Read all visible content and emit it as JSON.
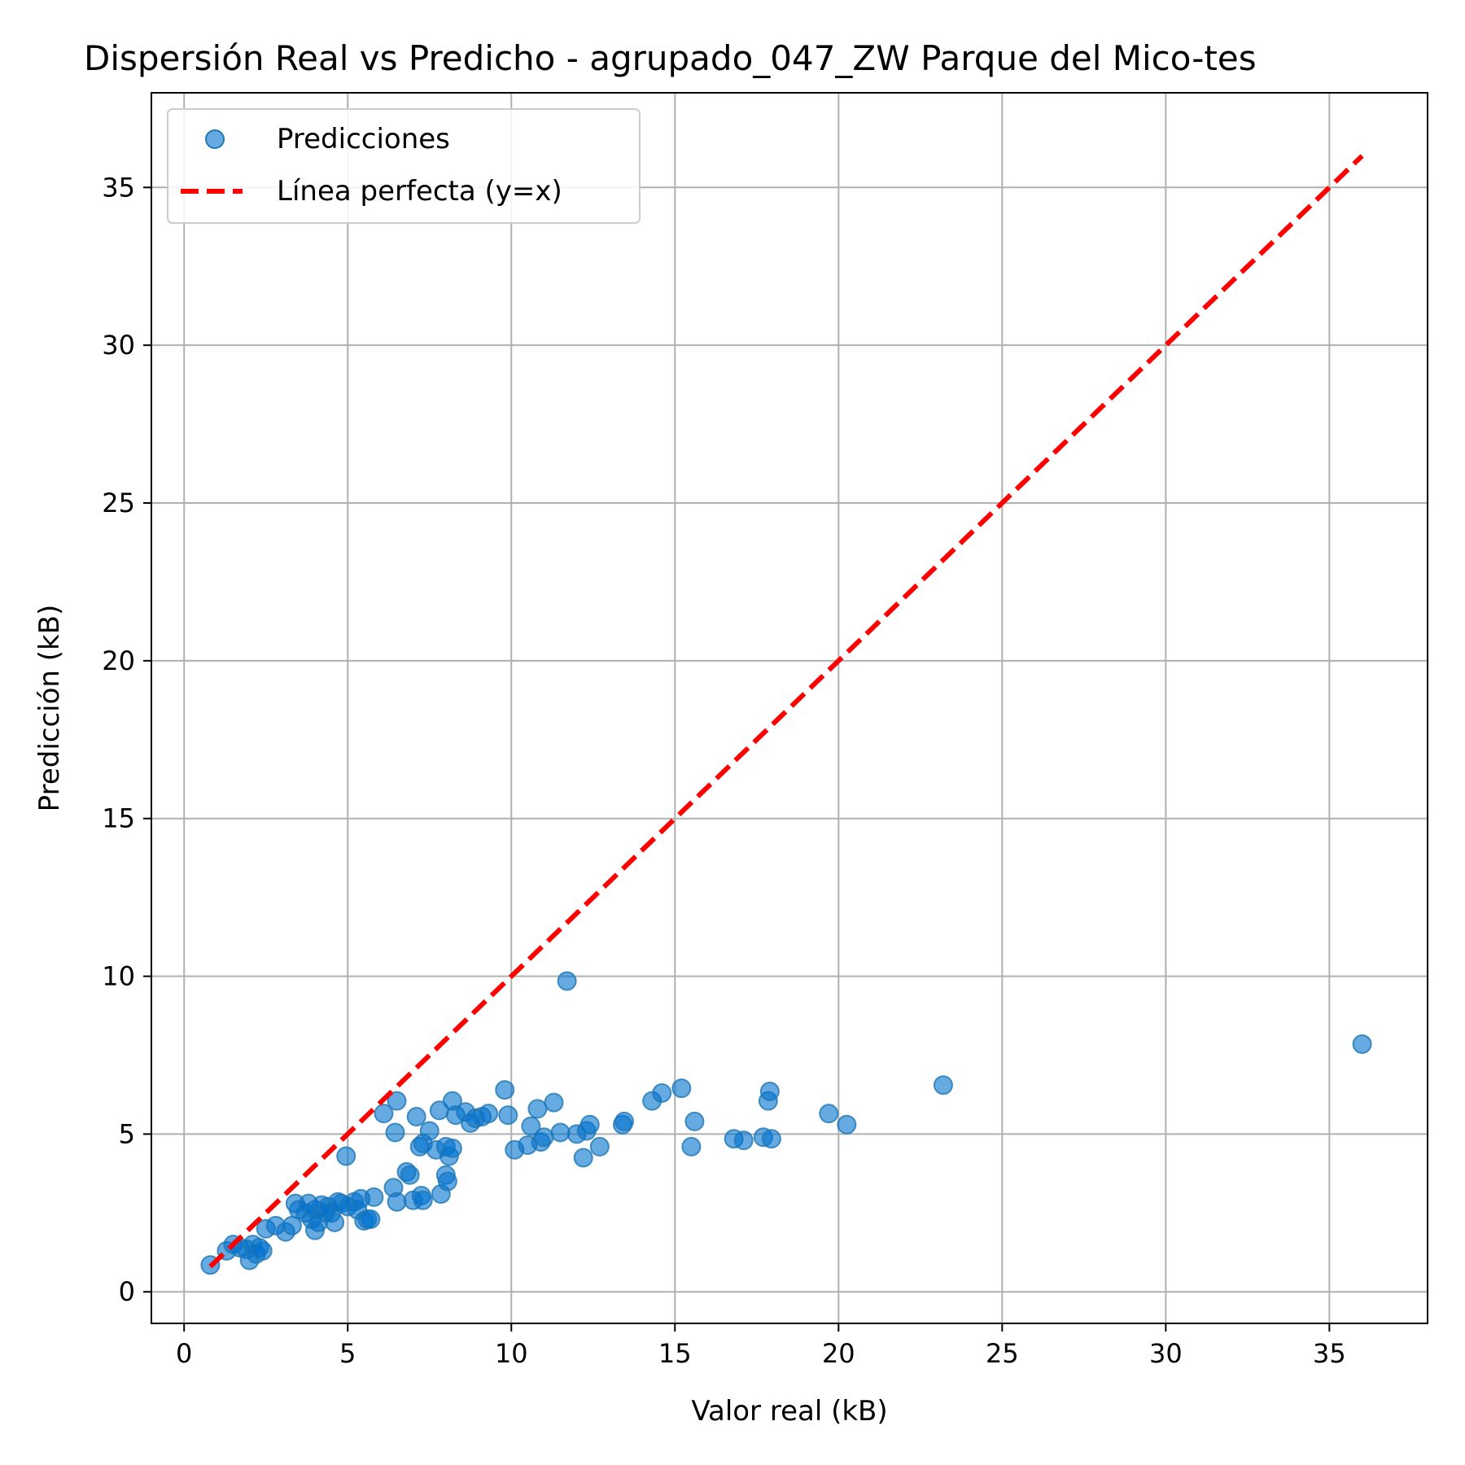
{
  "chart_data": {
    "type": "scatter",
    "title": "Dispersión Real vs Predicho - agrupado_047_ZW Parque del Mico-tes",
    "xlabel": "Valor real (kB)",
    "ylabel": "Predicción (kB)",
    "xlim": [
      -1,
      38
    ],
    "ylim": [
      -1,
      38
    ],
    "xticks": [
      0,
      5,
      10,
      15,
      20,
      25,
      30,
      35
    ],
    "yticks": [
      0,
      5,
      10,
      15,
      20,
      25,
      30,
      35
    ],
    "grid": true,
    "legend_position": "top-left",
    "colors": {
      "points": "#1f77b4",
      "point_fill": "#0072cf",
      "reference_line": "#ff0000"
    },
    "series": [
      {
        "name": "Predicciones",
        "kind": "scatter",
        "points": [
          [
            0.8,
            0.85
          ],
          [
            1.3,
            1.3
          ],
          [
            1.5,
            1.5
          ],
          [
            1.7,
            1.4
          ],
          [
            1.9,
            1.35
          ],
          [
            2.0,
            1.0
          ],
          [
            2.1,
            1.5
          ],
          [
            2.2,
            1.2
          ],
          [
            2.3,
            1.4
          ],
          [
            2.4,
            1.3
          ],
          [
            2.5,
            2.0
          ],
          [
            2.8,
            2.1
          ],
          [
            3.1,
            1.9
          ],
          [
            3.3,
            2.1
          ],
          [
            3.4,
            2.8
          ],
          [
            3.5,
            2.6
          ],
          [
            3.7,
            2.5
          ],
          [
            3.8,
            2.8
          ],
          [
            3.9,
            2.3
          ],
          [
            4.0,
            1.95
          ],
          [
            4.0,
            2.6
          ],
          [
            4.1,
            2.2
          ],
          [
            4.2,
            2.75
          ],
          [
            4.3,
            2.5
          ],
          [
            4.4,
            2.7
          ],
          [
            4.5,
            2.5
          ],
          [
            4.6,
            2.2
          ],
          [
            4.7,
            2.85
          ],
          [
            4.8,
            2.8
          ],
          [
            4.95,
            4.3
          ],
          [
            5.0,
            2.7
          ],
          [
            5.2,
            2.85
          ],
          [
            5.3,
            2.6
          ],
          [
            5.4,
            2.95
          ],
          [
            5.5,
            2.25
          ],
          [
            5.6,
            2.3
          ],
          [
            5.7,
            2.3
          ],
          [
            5.8,
            3.0
          ],
          [
            6.1,
            5.65
          ],
          [
            6.4,
            3.3
          ],
          [
            6.45,
            5.05
          ],
          [
            6.5,
            2.85
          ],
          [
            6.5,
            6.05
          ],
          [
            6.8,
            3.8
          ],
          [
            6.9,
            3.7
          ],
          [
            7.0,
            2.9
          ],
          [
            7.1,
            5.55
          ],
          [
            7.2,
            4.6
          ],
          [
            7.25,
            3.05
          ],
          [
            7.3,
            2.9
          ],
          [
            7.3,
            4.7
          ],
          [
            7.5,
            5.1
          ],
          [
            7.7,
            4.5
          ],
          [
            7.8,
            5.75
          ],
          [
            7.85,
            3.1
          ],
          [
            8.0,
            3.7
          ],
          [
            8.0,
            4.6
          ],
          [
            8.05,
            3.5
          ],
          [
            8.1,
            4.3
          ],
          [
            8.2,
            4.55
          ],
          [
            8.2,
            6.05
          ],
          [
            8.3,
            5.6
          ],
          [
            8.6,
            5.7
          ],
          [
            8.75,
            5.35
          ],
          [
            8.9,
            5.5
          ],
          [
            9.1,
            5.55
          ],
          [
            9.3,
            5.65
          ],
          [
            9.8,
            6.4
          ],
          [
            9.9,
            5.6
          ],
          [
            10.1,
            4.5
          ],
          [
            10.5,
            4.65
          ],
          [
            10.6,
            5.25
          ],
          [
            10.8,
            5.8
          ],
          [
            10.9,
            4.75
          ],
          [
            11.0,
            4.9
          ],
          [
            11.3,
            6.0
          ],
          [
            11.5,
            5.05
          ],
          [
            11.7,
            9.85
          ],
          [
            12.0,
            5.0
          ],
          [
            12.2,
            4.25
          ],
          [
            12.3,
            5.1
          ],
          [
            12.4,
            5.3
          ],
          [
            12.7,
            4.6
          ],
          [
            13.4,
            5.3
          ],
          [
            13.45,
            5.4
          ],
          [
            14.3,
            6.05
          ],
          [
            14.6,
            6.3
          ],
          [
            15.2,
            6.45
          ],
          [
            15.5,
            4.6
          ],
          [
            15.6,
            5.4
          ],
          [
            16.8,
            4.85
          ],
          [
            17.1,
            4.8
          ],
          [
            17.7,
            4.9
          ],
          [
            17.85,
            6.05
          ],
          [
            17.9,
            6.35
          ],
          [
            17.95,
            4.85
          ],
          [
            19.7,
            5.65
          ],
          [
            20.25,
            5.3
          ],
          [
            23.2,
            6.55
          ],
          [
            36.0,
            7.85
          ]
        ]
      },
      {
        "name": "Línea perfecta (y=x)",
        "kind": "line",
        "style": "dashed",
        "x": [
          0.8,
          36.0
        ],
        "y": [
          0.8,
          36.0
        ]
      }
    ]
  }
}
